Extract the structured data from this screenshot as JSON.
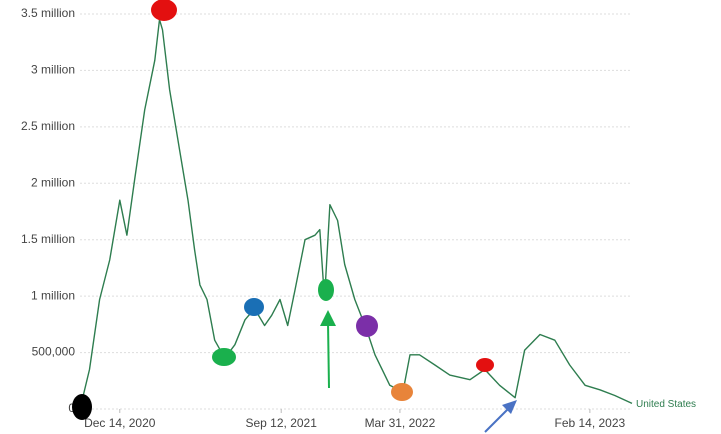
{
  "chart_data": {
    "type": "line",
    "x": [
      "2020-10-08",
      "2020-10-24",
      "2020-11-10",
      "2020-11-27",
      "2020-12-14",
      "2020-12-26",
      "2021-01-08",
      "2021-01-25",
      "2021-02-11",
      "2021-02-19",
      "2021-02-24",
      "2021-03-08",
      "2021-03-25",
      "2021-04-08",
      "2021-04-19",
      "2021-04-28",
      "2021-05-10",
      "2021-05-23",
      "2021-06-09",
      "2021-06-26",
      "2021-07-13",
      "2021-07-29",
      "2021-08-15",
      "2021-08-27",
      "2021-09-10",
      "2021-09-23",
      "2021-10-05",
      "2021-10-22",
      "2021-11-08",
      "2021-11-16",
      "2021-11-24",
      "2021-12-03",
      "2021-12-16",
      "2021-12-28",
      "2022-01-14",
      "2022-02-03",
      "2022-02-17",
      "2022-03-14",
      "2022-04-05",
      "2022-04-17",
      "2022-05-03",
      "2022-05-29",
      "2022-06-23",
      "2022-07-27",
      "2022-08-21",
      "2022-09-15",
      "2022-10-11",
      "2022-10-27",
      "2022-11-22",
      "2022-12-17",
      "2023-01-11",
      "2023-02-06",
      "2023-03-03",
      "2023-03-28",
      "2023-04-26"
    ],
    "series": [
      {
        "name": "United States",
        "color": "#2e7d4f",
        "values": [
          0,
          350000,
          970000,
          1320000,
          1850000,
          1540000,
          2030000,
          2650000,
          3090000,
          3450000,
          3360000,
          2830000,
          2290000,
          1850000,
          1410000,
          1100000,
          970000,
          610000,
          450000,
          570000,
          790000,
          890000,
          740000,
          830000,
          970000,
          740000,
          1050000,
          1500000,
          1540000,
          1590000,
          970000,
          1810000,
          1670000,
          1280000,
          970000,
          700000,
          480000,
          210000,
          150000,
          480000,
          480000,
          390000,
          300000,
          260000,
          350000,
          210000,
          100000,
          520000,
          660000,
          610000,
          390000,
          210000,
          170000,
          120000,
          50000
        ]
      }
    ],
    "xlim": [
      "2020-10-08",
      "2023-04-26"
    ],
    "xticks": [
      {
        "value": "2020-12-14",
        "label": "Dec 14, 2020"
      },
      {
        "value": "2021-09-12",
        "label": "Sep 12, 2021"
      },
      {
        "value": "2022-03-31",
        "label": "Mar 31, 2022"
      },
      {
        "value": "2023-02-14",
        "label": "Feb 14, 2023"
      }
    ],
    "ylim": [
      0,
      3500000
    ],
    "yticks": [
      0,
      {
        "value": 500000,
        "label": "500,000"
      },
      {
        "value": 1000000,
        "label": "1 million"
      },
      {
        "value": 1500000,
        "label": "1.5 million"
      },
      {
        "value": 2000000,
        "label": "2 million"
      },
      {
        "value": 2500000,
        "label": "2.5 million"
      },
      {
        "value": 3000000,
        "label": "3 million"
      },
      {
        "value": 3500000,
        "label": "3.5 million"
      }
    ],
    "grid": true
  }
}
